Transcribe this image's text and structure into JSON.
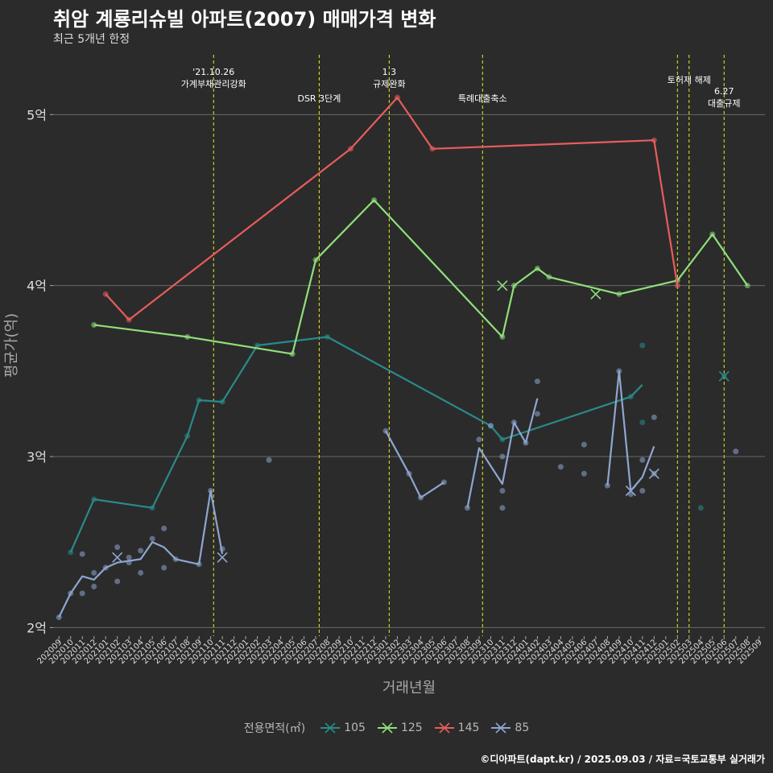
{
  "header": {
    "title": "취암 계룡리슈빌 아파트(2007) 매매가격 변화",
    "subtitle": "최근 5개년 한정",
    "caption": "©디아파트(dapt.kr) / 2025.09.03 / 자료=국토교통부 실거래가"
  },
  "legend": {
    "title": "전용면적(㎡)"
  },
  "colors": {
    "105": "#2a8a8a",
    "125": "#8fe07a",
    "145": "#e85c5c",
    "85": "#8ea6d0",
    "vline": "#e8e820",
    "grid": "#6a6a6a"
  },
  "chart_data": {
    "type": "line",
    "xlabel": "거래년월",
    "ylabel": "평균가(억)",
    "ylim": [
      1.95,
      5.35
    ],
    "yticks": [
      2,
      3,
      4,
      5
    ],
    "ytick_labels": [
      "2억",
      "3억",
      "4억",
      "5억"
    ],
    "x_categories": [
      "202009",
      "202010",
      "202011",
      "202012",
      "202101",
      "202102",
      "202103",
      "202104",
      "202105",
      "202106",
      "202107",
      "202108",
      "202109",
      "202110",
      "202111",
      "202112",
      "202201",
      "202202",
      "202203",
      "202204",
      "202205",
      "202206",
      "202207",
      "202208",
      "202209",
      "202210",
      "202211",
      "202212",
      "202301",
      "202302",
      "202303",
      "202304",
      "202305",
      "202306",
      "202307",
      "202308",
      "202309",
      "202310",
      "202311",
      "202312",
      "202401",
      "202402",
      "202403",
      "202404",
      "202405",
      "202406",
      "202407",
      "202408",
      "202409",
      "202410",
      "202411",
      "202412",
      "202501",
      "202502",
      "202503",
      "202504",
      "202505",
      "202506",
      "202507",
      "202508",
      "202509"
    ],
    "events": [
      {
        "x": 13.25,
        "label": "'21.10.26\n가계부채관리강화",
        "row": 0
      },
      {
        "x": 22.3,
        "label": "DSR 3단계",
        "row": 1
      },
      {
        "x": 28.3,
        "label": "1.3\n규제완화",
        "row": 0
      },
      {
        "x": 36.3,
        "label": "특례대출축소",
        "row": 1
      },
      {
        "x": 53.0,
        "label": "",
        "row": 0
      },
      {
        "x": 54.0,
        "label": "토허제 해제",
        "row": 0
      },
      {
        "x": 57.0,
        "label": "6.27\n대출규제",
        "row": 2
      }
    ],
    "series": [
      {
        "name": "105",
        "color": "#2a8a8a",
        "line": [
          [
            1,
            2.44
          ],
          [
            3,
            2.75
          ],
          [
            8,
            2.7
          ],
          [
            11,
            3.12
          ],
          [
            12,
            3.33
          ],
          [
            14,
            3.32
          ],
          [
            17,
            3.65
          ],
          [
            23,
            3.7
          ],
          [
            37,
            3.18
          ],
          [
            38,
            3.1
          ],
          [
            49,
            3.35
          ],
          [
            50,
            3.42
          ]
        ],
        "points": [
          [
            1,
            2.44
          ],
          [
            3,
            2.75
          ],
          [
            8,
            2.7
          ],
          [
            11,
            3.12
          ],
          [
            12,
            3.33
          ],
          [
            14,
            3.32
          ],
          [
            17,
            3.65
          ],
          [
            23,
            3.7
          ],
          [
            37,
            3.18
          ],
          [
            38,
            3.1
          ],
          [
            49,
            3.35
          ],
          [
            50,
            3.65
          ],
          [
            50,
            3.2
          ],
          [
            55,
            2.7
          ],
          [
            57,
            3.47
          ]
        ],
        "crosses": [
          [
            57,
            3.47
          ]
        ]
      },
      {
        "name": "125",
        "color": "#8fe07a",
        "line": [
          [
            3,
            3.77
          ],
          [
            11,
            3.7
          ],
          [
            20,
            3.6
          ],
          [
            22,
            4.15
          ],
          [
            27,
            4.5
          ],
          [
            38,
            3.7
          ],
          [
            39,
            4.0
          ],
          [
            41,
            4.1
          ],
          [
            42,
            4.05
          ],
          [
            48,
            3.95
          ],
          [
            53,
            4.03
          ],
          [
            56,
            4.3
          ],
          [
            59,
            4.0
          ]
        ],
        "points": [
          [
            3,
            3.77
          ],
          [
            11,
            3.7
          ],
          [
            20,
            3.6
          ],
          [
            22,
            4.15
          ],
          [
            27,
            4.5
          ],
          [
            38,
            3.7
          ],
          [
            39,
            4.0
          ],
          [
            41,
            4.1
          ],
          [
            42,
            4.05
          ],
          [
            48,
            3.95
          ],
          [
            53,
            4.03
          ],
          [
            56,
            4.3
          ],
          [
            59,
            4.0
          ]
        ],
        "crosses": [
          [
            38,
            4.0
          ],
          [
            46,
            3.95
          ]
        ]
      },
      {
        "name": "145",
        "color": "#e85c5c",
        "line": [
          [
            4,
            3.95
          ],
          [
            6,
            3.8
          ],
          [
            25,
            4.8
          ],
          [
            29,
            5.1
          ],
          [
            32,
            4.8
          ],
          [
            51,
            4.85
          ],
          [
            53,
            4.0
          ]
        ],
        "points": [
          [
            4,
            3.95
          ],
          [
            6,
            3.8
          ],
          [
            25,
            4.8
          ],
          [
            29,
            5.1
          ],
          [
            32,
            4.8
          ],
          [
            51,
            4.85
          ],
          [
            53,
            4.0
          ]
        ],
        "crosses": []
      },
      {
        "name": "85",
        "color": "#8ea6d0",
        "line_segments": [
          [
            [
              0,
              2.06
            ],
            [
              1,
              2.2
            ],
            [
              2,
              2.3
            ],
            [
              3,
              2.28
            ],
            [
              4,
              2.35
            ],
            [
              5,
              2.38
            ],
            [
              7,
              2.4
            ],
            [
              8,
              2.5
            ],
            [
              9,
              2.47
            ],
            [
              10,
              2.4
            ],
            [
              12,
              2.37
            ],
            [
              13,
              2.8
            ],
            [
              14,
              2.43
            ]
          ],
          [
            [
              28,
              3.15
            ],
            [
              30,
              2.9
            ],
            [
              31,
              2.76
            ],
            [
              33,
              2.85
            ]
          ],
          [
            [
              35,
              2.7
            ],
            [
              36,
              3.05
            ],
            [
              38,
              2.84
            ],
            [
              39,
              3.2
            ],
            [
              40,
              3.08
            ],
            [
              41,
              3.34
            ]
          ],
          [
            [
              47,
              2.83
            ],
            [
              48,
              3.5
            ],
            [
              49,
              2.8
            ],
            [
              50,
              2.88
            ],
            [
              51,
              3.06
            ]
          ]
        ],
        "points": [
          [
            0,
            2.06
          ],
          [
            1,
            2.2
          ],
          [
            2,
            2.43
          ],
          [
            2,
            2.2
          ],
          [
            3,
            2.24
          ],
          [
            3,
            2.32
          ],
          [
            4,
            2.35
          ],
          [
            5,
            2.27
          ],
          [
            5,
            2.47
          ],
          [
            6,
            2.38
          ],
          [
            6,
            2.41
          ],
          [
            7,
            2.32
          ],
          [
            7,
            2.45
          ],
          [
            8,
            2.52
          ],
          [
            9,
            2.35
          ],
          [
            9,
            2.58
          ],
          [
            10,
            2.4
          ],
          [
            12,
            2.37
          ],
          [
            13,
            2.8
          ],
          [
            14,
            2.46
          ],
          [
            18,
            2.98
          ],
          [
            28,
            3.15
          ],
          [
            30,
            2.9
          ],
          [
            31,
            2.76
          ],
          [
            33,
            2.85
          ],
          [
            35,
            2.7
          ],
          [
            36,
            3.1
          ],
          [
            37,
            3.18
          ],
          [
            38,
            3.0
          ],
          [
            38,
            2.8
          ],
          [
            38,
            2.7
          ],
          [
            39,
            3.2
          ],
          [
            40,
            3.08
          ],
          [
            41,
            3.25
          ],
          [
            41,
            3.44
          ],
          [
            43,
            2.94
          ],
          [
            45,
            3.07
          ],
          [
            45,
            2.9
          ],
          [
            47,
            2.83
          ],
          [
            48,
            3.5
          ],
          [
            49,
            2.78
          ],
          [
            50,
            2.8
          ],
          [
            50,
            2.98
          ],
          [
            51,
            3.23
          ],
          [
            51,
            2.9
          ],
          [
            58,
            3.03
          ]
        ],
        "crosses": [
          [
            5,
            2.41
          ],
          [
            14,
            2.41
          ],
          [
            49,
            2.8
          ],
          [
            51,
            2.9
          ]
        ]
      }
    ]
  }
}
